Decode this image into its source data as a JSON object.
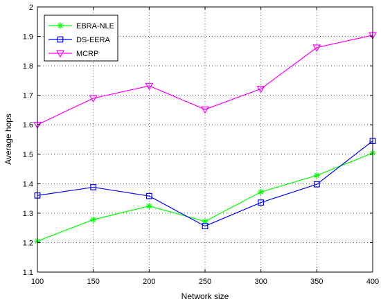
{
  "chart_data": {
    "type": "line",
    "xlabel": "Network size",
    "ylabel": "Average hops",
    "x": [
      100,
      150,
      200,
      250,
      300,
      350,
      400
    ],
    "xlim": [
      100,
      400
    ],
    "ylim": [
      1.1,
      2.0
    ],
    "xticks": [
      "100",
      "150",
      "200",
      "250",
      "300",
      "350",
      "400"
    ],
    "yticks": [
      "1.1",
      "1.2",
      "1.3",
      "1.4",
      "1.5",
      "1.6",
      "1.7",
      "1.8",
      "1.9",
      "2"
    ],
    "grid": true,
    "legend_position": "top-left",
    "series": [
      {
        "name": "EBRA-NLE",
        "color": "#00ff00",
        "marker": "asterisk",
        "values": [
          1.205,
          1.278,
          1.324,
          1.272,
          1.372,
          1.428,
          1.504
        ]
      },
      {
        "name": "DS-EERA",
        "color": "#0000ff",
        "marker": "square",
        "values": [
          1.36,
          1.388,
          1.358,
          1.256,
          1.336,
          1.398,
          1.545
        ]
      },
      {
        "name": "MCRP",
        "color": "#ff00ff",
        "marker": "triangle-down",
        "values": [
          1.6,
          1.69,
          1.732,
          1.652,
          1.722,
          1.862,
          1.904
        ]
      }
    ]
  }
}
